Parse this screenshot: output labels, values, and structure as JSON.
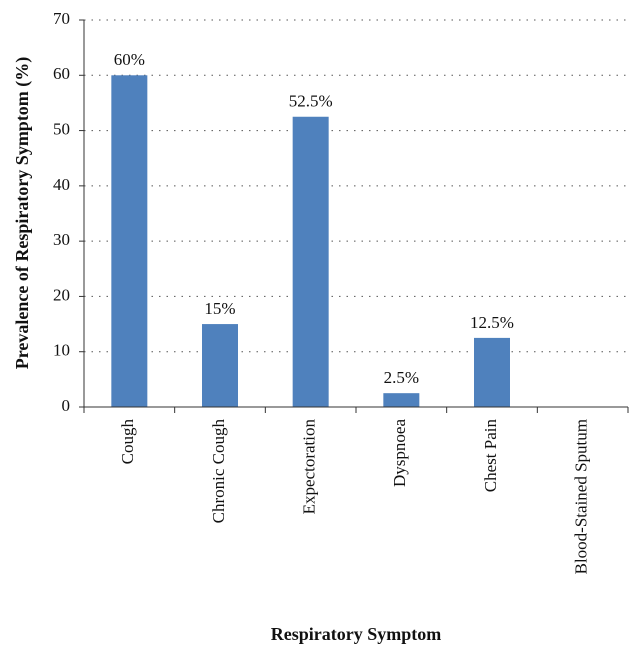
{
  "chart_data": {
    "type": "bar",
    "x_label": "Respiratory Symptom",
    "y_label": "Prevalence of Respiratory Symptom (%)",
    "categories": [
      "Cough",
      "Chronic Cough",
      "Expectoration",
      "Dyspnoea",
      "Chest Pain",
      "Blood-Stained Sputum"
    ],
    "values": [
      60,
      15,
      52.5,
      2.5,
      12.5,
      0
    ],
    "value_labels": [
      "60%",
      "15%",
      "52.5%",
      "2.5%",
      "12.5%",
      null
    ],
    "color": "#4f81bd",
    "ylim": [
      0,
      70
    ],
    "yticks": [
      0,
      10,
      20,
      30,
      40,
      50,
      60,
      70
    ],
    "grid": true
  }
}
